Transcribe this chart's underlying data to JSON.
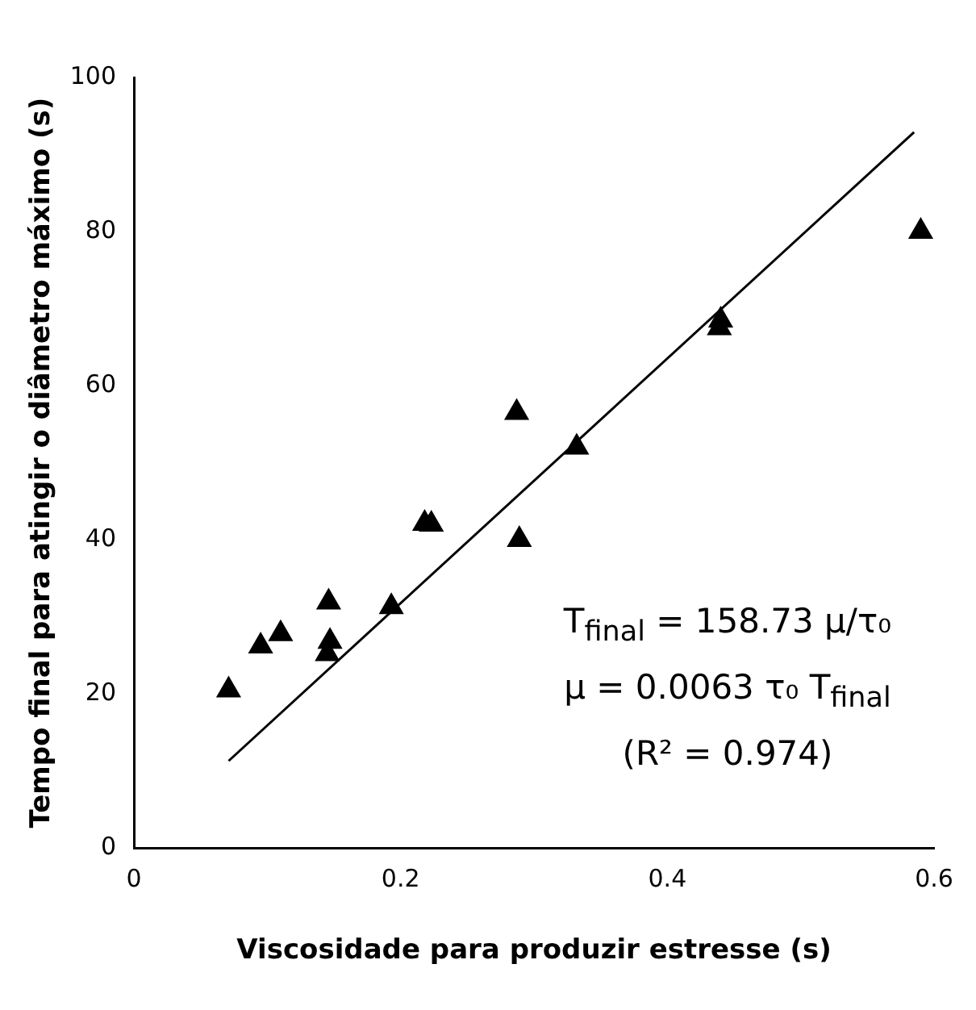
{
  "chart_data": {
    "type": "scatter",
    "xlabel": "Viscosidade para produzir estresse (s)",
    "ylabel": "Tempo final para atingir o diâmetro máximo (s)",
    "xlim": [
      0,
      0.6
    ],
    "xticks": [
      0,
      0.2,
      0.4,
      0.6
    ],
    "ylim": [
      0,
      100
    ],
    "yticks": [
      0,
      20,
      40,
      60,
      80,
      100
    ],
    "grid": false,
    "legend": false,
    "series": [
      {
        "marker": "triangle",
        "color": "#000000",
        "x": [
          0.071,
          0.095,
          0.11,
          0.146,
          0.145,
          0.147,
          0.193,
          0.218,
          0.223,
          0.289,
          0.287,
          0.332,
          0.44,
          0.439,
          0.59
        ],
        "values": [
          20.5,
          26.2,
          27.8,
          31.9,
          25.2,
          26.8,
          31.3,
          42.1,
          42,
          40,
          56.5,
          52,
          68.5,
          67.5,
          80
        ]
      },
      {
        "type": "line",
        "marker": "none",
        "line_style": "solid",
        "color": "#000000",
        "x": [
          0.071,
          0.585
        ],
        "values": [
          11.3,
          92.9
        ]
      }
    ],
    "annotations": [
      "T$_{final}$ = 158.73 μ/τ₀",
      "μ = 0.0063 τ₀ T$_{final}$",
      "(R² =  0.974)"
    ]
  }
}
